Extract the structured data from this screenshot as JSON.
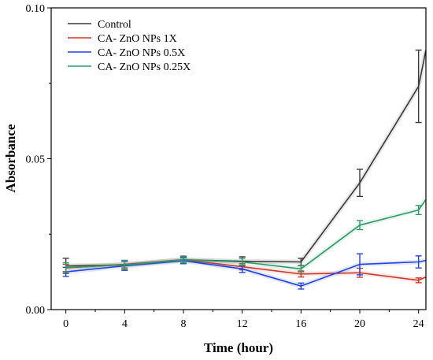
{
  "chart_data": {
    "type": "line",
    "title": "",
    "xlabel": "Time (hour)",
    "ylabel": "Absorbance",
    "x": [
      0,
      4,
      8,
      12,
      16,
      20,
      24
    ],
    "xlim": [
      -1,
      24.5
    ],
    "ylim": [
      0.0,
      0.1
    ],
    "x_ticks": [
      "0",
      "4",
      "8",
      "12",
      "16",
      "20",
      "24"
    ],
    "y_ticks": [
      "0.00",
      "0.05",
      "0.10"
    ],
    "y_tick_values": [
      0.0,
      0.05,
      0.1
    ],
    "grid": false,
    "legend_position": "top-left",
    "series": [
      {
        "name": "Control",
        "color": "#3a3a3a",
        "values": [
          0.0145,
          0.0148,
          0.0165,
          0.016,
          0.0158,
          0.042,
          0.074
        ],
        "errors": [
          0.0025,
          0.0015,
          0.0012,
          0.0015,
          0.0012,
          0.0045,
          0.012
        ],
        "end_value": 0.086
      },
      {
        "name": "CA- ZnO NPs 1X",
        "color": "#cc3b2b",
        "values": [
          0.0138,
          0.015,
          0.0165,
          0.0142,
          0.0118,
          0.0122,
          0.0097
        ],
        "errors": [
          0.0012,
          0.0012,
          0.001,
          0.001,
          0.001,
          0.0015,
          0.0008
        ],
        "end_value": 0.0108
      },
      {
        "name": "CA- ZnO NPs 0.5X",
        "color": "#2244dd",
        "values": [
          0.0125,
          0.0145,
          0.0162,
          0.0135,
          0.0078,
          0.015,
          0.0158
        ],
        "errors": [
          0.0015,
          0.0015,
          0.001,
          0.0012,
          0.001,
          0.0035,
          0.002
        ],
        "end_value": 0.0163
      },
      {
        "name": "CA- ZnO NPs 0.25X",
        "color": "#2e9a68",
        "values": [
          0.014,
          0.0148,
          0.0165,
          0.0158,
          0.0135,
          0.028,
          0.033
        ],
        "errors": [
          0.0015,
          0.0015,
          0.001,
          0.0012,
          0.001,
          0.0015,
          0.0015
        ],
        "end_value": 0.0365
      }
    ]
  }
}
